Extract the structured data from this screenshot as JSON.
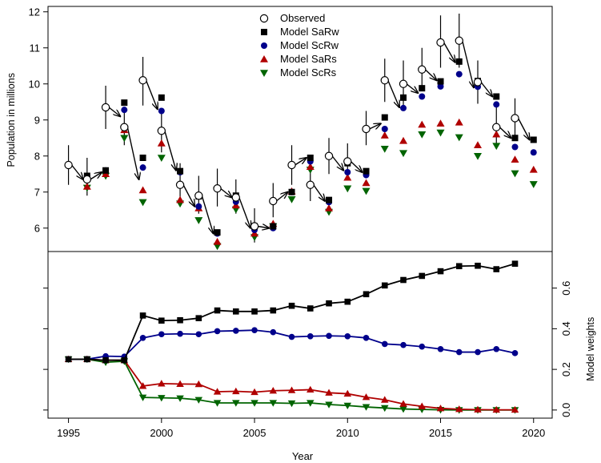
{
  "chart_data": {
    "type": "line",
    "xlabel": "Year",
    "x_ticks": [
      1995,
      2000,
      2005,
      2010,
      2015,
      2020
    ],
    "panels": [
      {
        "name": "population",
        "ylabel": "Population in millions",
        "ylim": [
          5.35,
          12.15
        ],
        "y_ticks": [
          6,
          7,
          8,
          9,
          10,
          11,
          12
        ],
        "legend_position": "top-center",
        "legend": [
          {
            "label": "Observed",
            "marker": "open-circle",
            "color": "#000000"
          },
          {
            "label": "Model SaRw",
            "marker": "square",
            "color": "#000000"
          },
          {
            "label": "Model ScRw",
            "marker": "circle",
            "color": "#00008b"
          },
          {
            "label": "Model SaRs",
            "marker": "triangle-up",
            "color": "#b00000"
          },
          {
            "label": "Model ScRs",
            "marker": "triangle-down",
            "color": "#006400"
          }
        ],
        "observed": {
          "x": [
            1995,
            1996,
            1997,
            1998,
            1999,
            2000,
            2001,
            2002,
            2003,
            2004,
            2005,
            2006,
            2007,
            2008,
            2009,
            2010,
            2011,
            2012,
            2013,
            2014,
            2015,
            2016,
            2017,
            2018,
            2019
          ],
          "y": [
            7.75,
            7.35,
            9.35,
            8.8,
            10.1,
            8.7,
            7.2,
            6.9,
            7.1,
            6.85,
            6.05,
            6.75,
            7.75,
            7.2,
            8.0,
            7.85,
            8.75,
            10.1,
            10.0,
            10.4,
            11.15,
            11.2,
            10.05,
            8.8,
            9.05
          ],
          "err_low": [
            7.2,
            6.9,
            8.75,
            8.3,
            9.4,
            8.1,
            6.6,
            6.4,
            6.6,
            6.4,
            5.6,
            6.3,
            7.2,
            6.75,
            7.5,
            7.35,
            8.3,
            9.5,
            9.4,
            9.8,
            10.45,
            10.45,
            9.45,
            8.3,
            8.5
          ],
          "err_high": [
            8.3,
            7.95,
            9.95,
            9.35,
            10.75,
            9.3,
            7.8,
            7.45,
            7.65,
            7.35,
            6.55,
            7.25,
            8.3,
            7.75,
            8.5,
            8.35,
            9.25,
            10.7,
            10.65,
            11.0,
            11.9,
            11.95,
            10.65,
            9.35,
            9.6
          ]
        },
        "arrow_targets": [
          7.35,
          7.55,
          9.1,
          7.35,
          9.3,
          7.6,
          6.6,
          5.85,
          6.85,
          6.0,
          6.0,
          7.0,
          7.95,
          6.75,
          7.6,
          7.55,
          8.9,
          9.35,
          9.75,
          10.1,
          10.6,
          9.9,
          9.65,
          8.5,
          8.45
        ],
        "series": [
          {
            "name": "Model SaRw",
            "marker": "square",
            "color": "#000000",
            "x": [
              1996,
              1997,
              1998,
              1999,
              2000,
              2001,
              2002,
              2003,
              2004,
              2005,
              2006,
              2007,
              2008,
              2009,
              2010,
              2011,
              2012,
              2013,
              2014,
              2015,
              2016,
              2017,
              2018,
              2019,
              2020
            ],
            "y": [
              7.45,
              7.6,
              9.48,
              7.95,
              9.62,
              7.58,
              6.88,
              5.88,
              6.9,
              6.05,
              6.05,
              7.0,
              7.95,
              6.78,
              7.8,
              7.58,
              9.07,
              9.62,
              9.88,
              10.07,
              10.62,
              10.08,
              9.65,
              8.5,
              8.45
            ]
          },
          {
            "name": "Model ScRw",
            "marker": "circle",
            "color": "#00008b",
            "x": [
              1996,
              1997,
              1998,
              1999,
              2000,
              2001,
              2002,
              2003,
              2004,
              2005,
              2006,
              2007,
              2008,
              2009,
              2010,
              2011,
              2012,
              2013,
              2014,
              2015,
              2016,
              2017,
              2018,
              2019,
              2020
            ],
            "y": [
              7.45,
              7.6,
              9.28,
              7.68,
              9.25,
              7.55,
              6.6,
              5.85,
              6.73,
              5.95,
              6.0,
              7.0,
              7.85,
              6.72,
              7.55,
              7.47,
              8.75,
              9.33,
              9.65,
              9.93,
              10.27,
              9.92,
              9.43,
              8.25,
              8.1
            ]
          },
          {
            "name": "Model SaRs",
            "marker": "triangle-up",
            "color": "#b00000",
            "x": [
              1996,
              1997,
              1998,
              1999,
              2000,
              2001,
              2002,
              2003,
              2004,
              2005,
              2006,
              2007,
              2008,
              2009,
              2010,
              2011,
              2012,
              2013,
              2014,
              2015,
              2016,
              2017,
              2018,
              2019,
              2020
            ],
            "y": [
              7.15,
              7.5,
              8.72,
              7.05,
              8.35,
              6.78,
              6.55,
              5.62,
              6.63,
              5.85,
              6.12,
              7.02,
              7.7,
              6.55,
              7.4,
              7.25,
              8.57,
              8.42,
              8.87,
              8.9,
              8.93,
              8.3,
              8.6,
              7.9,
              7.62
            ]
          },
          {
            "name": "Model ScRs",
            "marker": "triangle-down",
            "color": "#006400",
            "x": [
              1996,
              1997,
              1998,
              1999,
              2000,
              2001,
              2002,
              2003,
              2004,
              2005,
              2006,
              2007,
              2008,
              2009,
              2010,
              2011,
              2012,
              2013,
              2014,
              2015,
              2016,
              2017,
              2018,
              2019,
              2020
            ],
            "y": [
              7.12,
              7.45,
              8.5,
              6.72,
              7.95,
              6.68,
              6.22,
              5.5,
              6.52,
              5.75,
              6.05,
              6.8,
              7.62,
              6.45,
              7.1,
              7.03,
              8.2,
              8.08,
              8.6,
              8.65,
              8.52,
              8.0,
              8.28,
              7.52,
              7.22
            ]
          }
        ]
      },
      {
        "name": "weights",
        "ylabel": "Model weights",
        "ylim": [
          -0.04,
          0.78
        ],
        "y_ticks": [
          0.0,
          0.2,
          0.4,
          0.6
        ],
        "x": [
          1995,
          1996,
          1997,
          1998,
          1999,
          2000,
          2001,
          2002,
          2003,
          2004,
          2005,
          2006,
          2007,
          2008,
          2009,
          2010,
          2011,
          2012,
          2013,
          2014,
          2015,
          2016,
          2017,
          2018,
          2019
        ],
        "series": [
          {
            "name": "Model SaRw",
            "marker": "square",
            "color": "#000000",
            "y": [
              0.25,
              0.25,
              0.245,
              0.245,
              0.465,
              0.44,
              0.442,
              0.452,
              0.49,
              0.485,
              0.485,
              0.49,
              0.513,
              0.5,
              0.525,
              0.533,
              0.57,
              0.613,
              0.64,
              0.66,
              0.683,
              0.708,
              0.71,
              0.693,
              0.72
            ]
          },
          {
            "name": "Model ScRw",
            "marker": "circle",
            "color": "#00008b",
            "y": [
              0.25,
              0.25,
              0.265,
              0.263,
              0.355,
              0.373,
              0.375,
              0.373,
              0.388,
              0.39,
              0.393,
              0.383,
              0.36,
              0.363,
              0.365,
              0.363,
              0.355,
              0.325,
              0.32,
              0.312,
              0.3,
              0.285,
              0.285,
              0.3,
              0.28
            ]
          },
          {
            "name": "Model SaRs",
            "marker": "triangle-up",
            "color": "#b00000",
            "y": [
              0.25,
              0.25,
              0.245,
              0.245,
              0.118,
              0.13,
              0.128,
              0.127,
              0.09,
              0.092,
              0.088,
              0.095,
              0.097,
              0.1,
              0.085,
              0.08,
              0.063,
              0.05,
              0.03,
              0.018,
              0.008,
              0.004,
              0.002,
              0.001,
              0.001
            ]
          },
          {
            "name": "Model ScRs",
            "marker": "triangle-down",
            "color": "#006400",
            "y": [
              0.25,
              0.25,
              0.235,
              0.24,
              0.062,
              0.06,
              0.058,
              0.05,
              0.035,
              0.035,
              0.035,
              0.035,
              0.033,
              0.035,
              0.027,
              0.022,
              0.015,
              0.01,
              0.005,
              0.003,
              0.001,
              0.0,
              0.0,
              0.0,
              0.0
            ]
          }
        ]
      }
    ]
  }
}
